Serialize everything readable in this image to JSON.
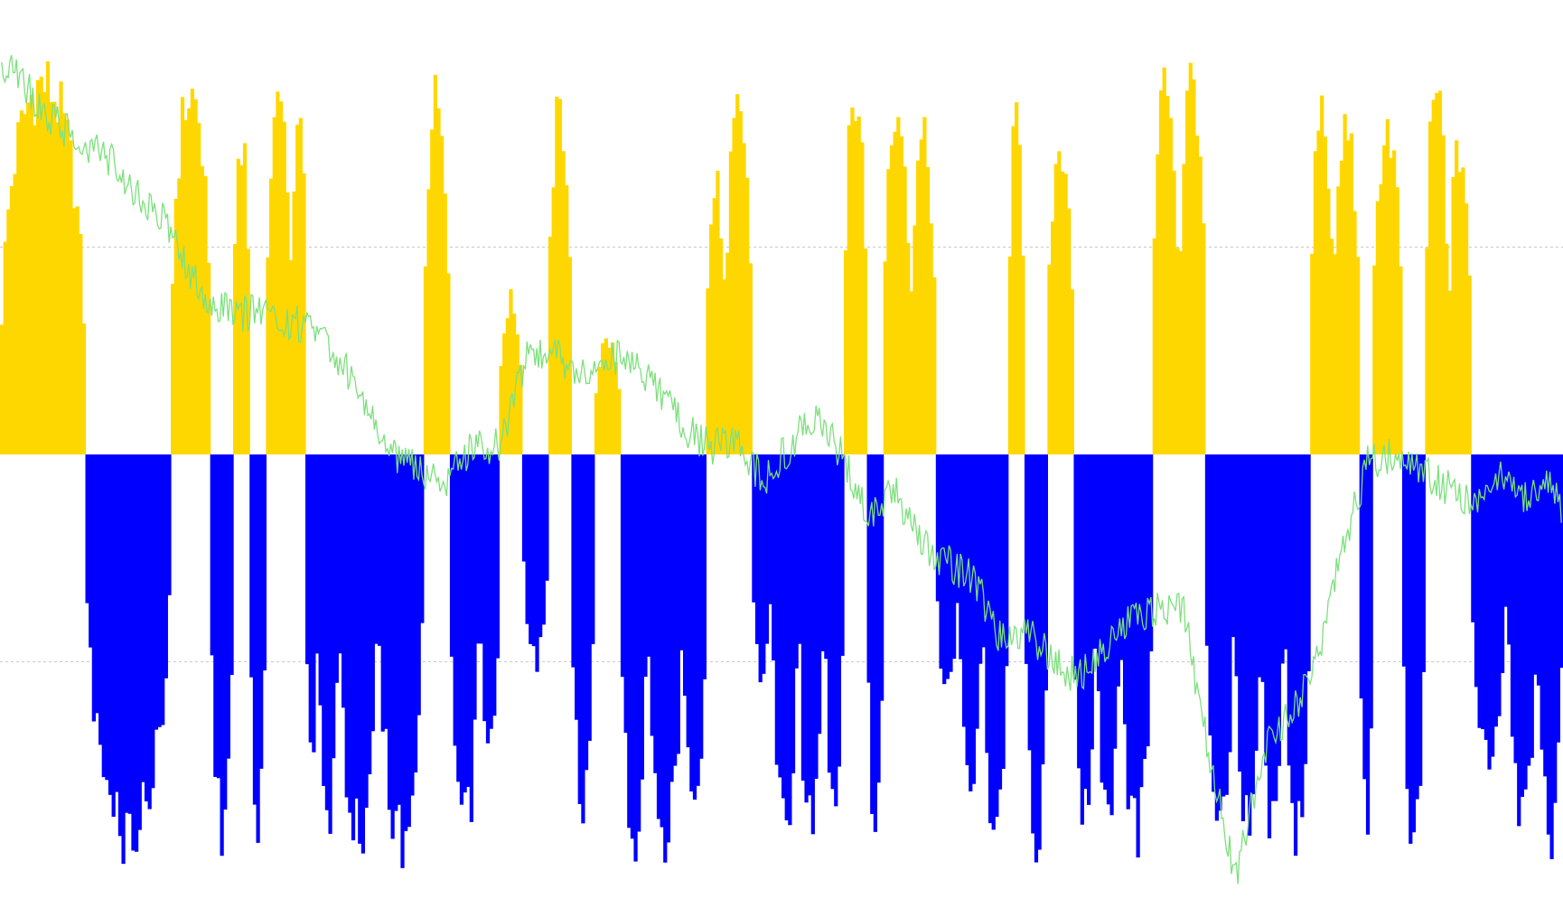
{
  "colors": {
    "background": "#ffffff",
    "positive": "#ffd700",
    "negative": "#0000ff",
    "price_line": "#7de07d",
    "gridline": "#c8c8c8"
  },
  "chart_data": {
    "type": "bar",
    "ylim": [
      -100,
      100
    ],
    "baseline": 0,
    "grid": {
      "horizontal_dashed_levels": [
        50,
        -50
      ]
    },
    "series": [
      {
        "kind": "bar",
        "sign_colors": {
          "positive": "positive",
          "negative": "negative"
        },
        "runs": [
          [
            0,
            25,
            98
          ],
          [
            26,
            51,
            -100
          ],
          [
            52,
            63,
            95
          ],
          [
            64,
            70,
            -97
          ],
          [
            71,
            75,
            85
          ],
          [
            76,
            80,
            -94
          ],
          [
            81,
            88,
            92
          ],
          [
            89,
            92,
            96
          ],
          [
            93,
            96,
            -76
          ],
          [
            97,
            102,
            -100
          ],
          [
            103,
            114,
            -100
          ],
          [
            115,
            128,
            -100
          ],
          [
            129,
            136,
            94
          ],
          [
            137,
            145,
            -98
          ],
          [
            146,
            151,
            -80
          ],
          [
            152,
            158,
            40
          ],
          [
            159,
            166,
            -55
          ],
          [
            167,
            173,
            90
          ],
          [
            174,
            180,
            -90
          ],
          [
            181,
            188,
            30
          ],
          [
            189,
            196,
            -100
          ],
          [
            197,
            207,
            -100
          ],
          [
            208,
            214,
            -100
          ],
          [
            215,
            220,
            70
          ],
          [
            221,
            228,
            90
          ],
          [
            229,
            234,
            -60
          ],
          [
            235,
            242,
            -96
          ],
          [
            243,
            250,
            -97
          ],
          [
            251,
            256,
            -95
          ],
          [
            257,
            263,
            94
          ],
          [
            264,
            268,
            -98
          ],
          [
            269,
            276,
            94
          ],
          [
            277,
            284,
            82
          ],
          [
            285,
            291,
            -62
          ],
          [
            292,
            298,
            -90
          ],
          [
            299,
            306,
            -96
          ],
          [
            307,
            311,
            86
          ],
          [
            312,
            318,
            -100
          ],
          [
            319,
            326,
            82
          ],
          [
            327,
            333,
            -93
          ],
          [
            334,
            340,
            -100
          ],
          [
            341,
            350,
            -98
          ],
          [
            351,
            358,
            98
          ],
          [
            359,
            366,
            99
          ],
          [
            367,
            375,
            -92
          ],
          [
            376,
            383,
            -99
          ],
          [
            384,
            390,
            -99
          ],
          [
            391,
            398,
            -98
          ],
          [
            399,
            405,
            91
          ],
          [
            406,
            413,
            86
          ],
          [
            414,
            417,
            -95
          ],
          [
            418,
            426,
            86
          ],
          [
            427,
            433,
            -98
          ],
          [
            434,
            440,
            95
          ],
          [
            441,
            447,
            80
          ],
          [
            448,
            458,
            -82
          ],
          [
            459,
            467,
            -98
          ],
          [
            468,
            475,
            -100
          ]
        ]
      },
      {
        "kind": "line",
        "points": [
          [
            0,
            95
          ],
          [
            8,
            88
          ],
          [
            16,
            80
          ],
          [
            24,
            76
          ],
          [
            32,
            72
          ],
          [
            40,
            64
          ],
          [
            48,
            58
          ],
          [
            56,
            45
          ],
          [
            64,
            36
          ],
          [
            72,
            34
          ],
          [
            80,
            34
          ],
          [
            88,
            32
          ],
          [
            96,
            30
          ],
          [
            104,
            22
          ],
          [
            112,
            10
          ],
          [
            120,
            0
          ],
          [
            128,
            -4
          ],
          [
            136,
            -6
          ],
          [
            144,
            2
          ],
          [
            152,
            2
          ],
          [
            160,
            24
          ],
          [
            168,
            24
          ],
          [
            176,
            20
          ],
          [
            184,
            24
          ],
          [
            192,
            22
          ],
          [
            200,
            16
          ],
          [
            208,
            6
          ],
          [
            216,
            2
          ],
          [
            224,
            2
          ],
          [
            232,
            -6
          ],
          [
            240,
            2
          ],
          [
            248,
            10
          ],
          [
            256,
            0
          ],
          [
            264,
            -14
          ],
          [
            272,
            -8
          ],
          [
            280,
            -22
          ],
          [
            288,
            -26
          ],
          [
            296,
            -30
          ],
          [
            304,
            -44
          ],
          [
            312,
            -42
          ],
          [
            320,
            -50
          ],
          [
            328,
            -54
          ],
          [
            336,
            -46
          ],
          [
            344,
            -40
          ],
          [
            352,
            -37
          ],
          [
            360,
            -38
          ],
          [
            368,
            -74
          ],
          [
            376,
            -102
          ],
          [
            384,
            -72
          ],
          [
            392,
            -63
          ],
          [
            400,
            -52
          ],
          [
            408,
            -24
          ],
          [
            416,
            -2
          ],
          [
            424,
            0
          ],
          [
            432,
            -4
          ],
          [
            440,
            -8
          ],
          [
            448,
            -12
          ],
          [
            456,
            -4
          ],
          [
            464,
            -10
          ],
          [
            472,
            -6
          ],
          [
            475,
            -14
          ]
        ]
      }
    ]
  }
}
